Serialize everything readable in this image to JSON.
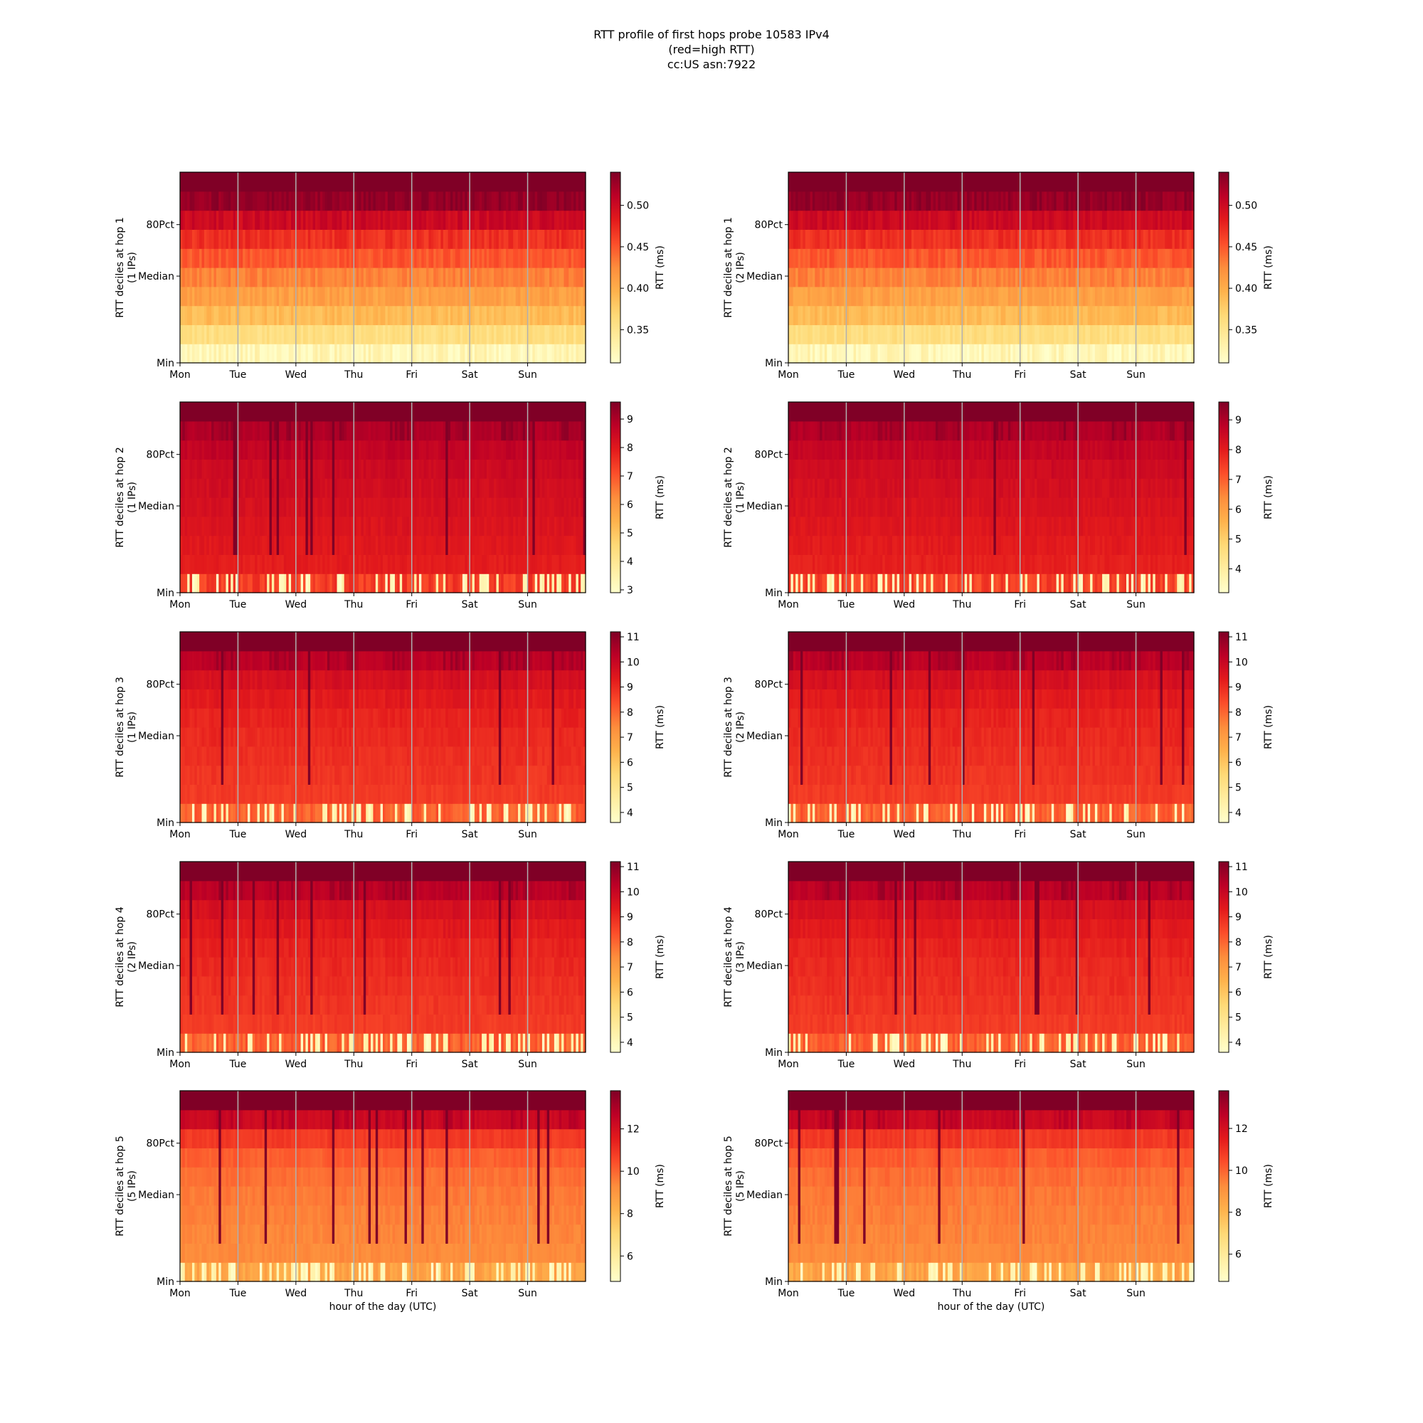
{
  "title_lines": [
    "RTT profile of first hops probe 10583 IPv4",
    "(red=high RTT)",
    "cc:US asn:7922"
  ],
  "x_tick_labels": [
    "Mon",
    "Tue",
    "Wed",
    "Thu",
    "Fri",
    "Sat",
    "Sun"
  ],
  "y_tick_labels": [
    "80Pct",
    "Median",
    "Min"
  ],
  "colorbar_label": "RTT (ms)",
  "colormap": [
    "#ffffcc",
    "#ffeda0",
    "#fed976",
    "#feb24c",
    "#fd8d3c",
    "#fc4e2a",
    "#e31a1c",
    "#bd0026",
    "#800026"
  ],
  "chart_data": [
    {
      "type": "heatmap",
      "ylabel": "RTT deciles at hop 1",
      "ips": "(1 IPs)",
      "xlabel": "",
      "clim": [
        0.31,
        0.54
      ],
      "colorbar_ticks": [
        "0.35",
        "0.40",
        "0.45",
        "0.50"
      ],
      "colorbar_values": [
        0.35,
        0.4,
        0.45,
        0.5
      ],
      "row_levels": [
        0.33,
        0.36,
        0.39,
        0.41,
        0.43,
        0.45,
        0.47,
        0.5,
        0.53,
        0.56
      ]
    },
    {
      "type": "heatmap",
      "ylabel": "RTT deciles at hop 1",
      "ips": "(2 IPs)",
      "xlabel": "",
      "clim": [
        0.31,
        0.54
      ],
      "colorbar_ticks": [
        "0.35",
        "0.40",
        "0.45",
        "0.50"
      ],
      "colorbar_values": [
        0.35,
        0.4,
        0.45,
        0.5
      ],
      "row_levels": [
        0.33,
        0.36,
        0.39,
        0.41,
        0.43,
        0.45,
        0.47,
        0.5,
        0.53,
        0.56
      ]
    },
    {
      "type": "heatmap",
      "ylabel": "RTT deciles at hop 2",
      "ips": "(1 IPs)",
      "xlabel": "",
      "clim": [
        2.9,
        9.6
      ],
      "colorbar_ticks": [
        "3",
        "4",
        "5",
        "6",
        "7",
        "8",
        "9"
      ],
      "colorbar_values": [
        3,
        4,
        5,
        6,
        7,
        8,
        9
      ],
      "row_levels": [
        4.8,
        7.9,
        8.0,
        8.1,
        8.2,
        8.3,
        8.4,
        8.6,
        8.9,
        9.8
      ]
    },
    {
      "type": "heatmap",
      "ylabel": "RTT deciles at hop 2",
      "ips": "(1 IPs)",
      "xlabel": "",
      "clim": [
        3.2,
        9.6
      ],
      "colorbar_ticks": [
        "4",
        "5",
        "6",
        "7",
        "8",
        "9"
      ],
      "colorbar_values": [
        4,
        5,
        6,
        7,
        8,
        9
      ],
      "row_levels": [
        5.2,
        7.9,
        8.0,
        8.1,
        8.2,
        8.3,
        8.4,
        8.6,
        8.9,
        9.8
      ]
    },
    {
      "type": "heatmap",
      "ylabel": "RTT deciles at hop 3",
      "ips": "(1 IPs)",
      "xlabel": "",
      "clim": [
        3.6,
        11.2
      ],
      "colorbar_ticks": [
        "4",
        "5",
        "6",
        "7",
        "8",
        "9",
        "10",
        "11"
      ],
      "colorbar_values": [
        4,
        5,
        6,
        7,
        8,
        9,
        10,
        11
      ],
      "row_levels": [
        6.0,
        8.7,
        8.8,
        8.9,
        9.0,
        9.1,
        9.3,
        9.6,
        10.2,
        11.4
      ]
    },
    {
      "type": "heatmap",
      "ylabel": "RTT deciles at hop 3",
      "ips": "(2 IPs)",
      "xlabel": "",
      "clim": [
        3.6,
        11.2
      ],
      "colorbar_ticks": [
        "4",
        "5",
        "6",
        "7",
        "8",
        "9",
        "10",
        "11"
      ],
      "colorbar_values": [
        4,
        5,
        6,
        7,
        8,
        9,
        10,
        11
      ],
      "row_levels": [
        6.0,
        8.7,
        8.8,
        8.9,
        9.0,
        9.1,
        9.3,
        9.6,
        10.2,
        11.4
      ]
    },
    {
      "type": "heatmap",
      "ylabel": "RTT deciles at hop 4",
      "ips": "(2 IPs)",
      "xlabel": "",
      "clim": [
        3.6,
        11.2
      ],
      "colorbar_ticks": [
        "4",
        "5",
        "6",
        "7",
        "8",
        "9",
        "10",
        "11"
      ],
      "colorbar_values": [
        4,
        5,
        6,
        7,
        8,
        9,
        10,
        11
      ],
      "row_levels": [
        6.0,
        8.7,
        8.8,
        8.9,
        9.0,
        9.1,
        9.3,
        9.6,
        10.2,
        11.4
      ]
    },
    {
      "type": "heatmap",
      "ylabel": "RTT deciles at hop 4",
      "ips": "(3 IPs)",
      "xlabel": "",
      "clim": [
        3.6,
        11.2
      ],
      "colorbar_ticks": [
        "4",
        "5",
        "6",
        "7",
        "8",
        "9",
        "10",
        "11"
      ],
      "colorbar_values": [
        4,
        5,
        6,
        7,
        8,
        9,
        10,
        11
      ],
      "row_levels": [
        6.0,
        8.7,
        8.8,
        8.9,
        9.0,
        9.1,
        9.3,
        9.6,
        10.2,
        11.4
      ]
    },
    {
      "type": "heatmap",
      "ylabel": "RTT deciles at hop 5",
      "ips": "(5 IPs)",
      "xlabel": "hour of the day (UTC)",
      "clim": [
        4.8,
        13.8
      ],
      "colorbar_ticks": [
        "6",
        "8",
        "10",
        "12"
      ],
      "colorbar_values": [
        6,
        8,
        10,
        12
      ],
      "row_levels": [
        7.6,
        9.3,
        9.4,
        9.5,
        9.6,
        9.8,
        10.1,
        10.8,
        12.2,
        14.0
      ]
    },
    {
      "type": "heatmap",
      "ylabel": "RTT deciles at hop 5",
      "ips": "(5 IPs)",
      "xlabel": "hour of the day (UTC)",
      "clim": [
        4.7,
        13.8
      ],
      "colorbar_ticks": [
        "6",
        "8",
        "10",
        "12"
      ],
      "colorbar_values": [
        6,
        8,
        10,
        12
      ],
      "row_levels": [
        7.4,
        9.3,
        9.4,
        9.5,
        9.6,
        9.8,
        10.1,
        10.8,
        12.2,
        14.0
      ]
    }
  ]
}
